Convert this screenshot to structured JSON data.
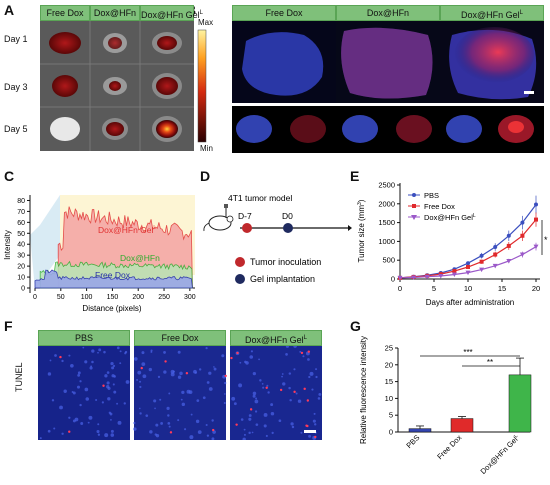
{
  "panels": {
    "A": "A",
    "B": "B",
    "C": "C",
    "D": "D",
    "E": "E",
    "F": "F",
    "G": "G"
  },
  "panelA": {
    "headers": [
      "Free Dox",
      "Dox@HFn",
      "Dox@HFn Gel"
    ],
    "sup": "L",
    "days": [
      "Day 1",
      "Day 3",
      "Day 5"
    ],
    "colorbar": {
      "max": "Max",
      "min": "Min"
    }
  },
  "panelB": {
    "headers": [
      "Free Dox",
      "Dox@HFn",
      "Dox@HFn Gel"
    ],
    "sup": "L"
  },
  "panelC": {
    "ylabel": "Intensity",
    "xlabel": "Distance (pixels)",
    "xticks": [
      "0",
      "50",
      "100",
      "150",
      "200",
      "250",
      "300"
    ],
    "yticks": [
      "0",
      "10",
      "20",
      "30",
      "40",
      "50",
      "60",
      "70",
      "80"
    ],
    "labels": {
      "gel": "Dox@HFn Gel",
      "sup": "L",
      "hfn": "Dox@HFn",
      "free": "Free Dox"
    }
  },
  "panelD": {
    "model": "4T1 tumor model",
    "d7": "D-7",
    "d0": "D0",
    "legend": [
      "Tumor inoculation",
      "Gel implantation"
    ],
    "colors": {
      "inoculation": "#c0282c",
      "gel": "#1f2a5f"
    }
  },
  "chart_data": [
    {
      "type": "line",
      "ylabel": "Tumor size (mm",
      "ylabel_sup": "3",
      "ylabel_end": ")",
      "xlabel": "Days after administration",
      "x": [
        0,
        2,
        4,
        6,
        8,
        10,
        12,
        14,
        16,
        18,
        20
      ],
      "xlim": [
        0,
        20
      ],
      "ylim": [
        0,
        2500
      ],
      "xticks": [
        "0",
        "5",
        "10",
        "15",
        "20"
      ],
      "yticks": [
        "0",
        "500",
        "1000",
        "1500",
        "2000",
        "2500"
      ],
      "series": [
        {
          "name": "PBS",
          "color": "#3b4fbf",
          "values": [
            30,
            60,
            100,
            160,
            260,
            420,
            620,
            850,
            1150,
            1500,
            1980
          ]
        },
        {
          "name": "Free Dox",
          "color": "#e0292c",
          "values": [
            30,
            55,
            85,
            130,
            210,
            320,
            460,
            650,
            880,
            1150,
            1580
          ]
        },
        {
          "name": "Dox@HFn Gel",
          "color": "#9b59c9",
          "values": [
            30,
            40,
            60,
            80,
            120,
            170,
            250,
            350,
            480,
            650,
            860
          ]
        }
      ],
      "legend_sup": "L",
      "significance": "*"
    },
    {
      "type": "bar",
      "ylabel": "Relative fluorescence intensity",
      "categories": [
        "PBS",
        "Free Dox",
        "Dox@HFn Gel"
      ],
      "category_sup": "L",
      "values": [
        1.0,
        4.0,
        17.0
      ],
      "errors": [
        0.8,
        0.6,
        5.0
      ],
      "colors": [
        "#3344b0",
        "#e02a2a",
        "#3fb54a"
      ],
      "ylim": [
        0,
        25
      ],
      "yticks": [
        "0",
        "5",
        "10",
        "15",
        "20",
        "25"
      ],
      "significance": [
        "***",
        "**"
      ]
    }
  ],
  "panelF": {
    "headers": [
      "PBS",
      "Free Dox",
      "Dox@HFn Gel"
    ],
    "sup": "L",
    "side_label": "TUNEL"
  }
}
